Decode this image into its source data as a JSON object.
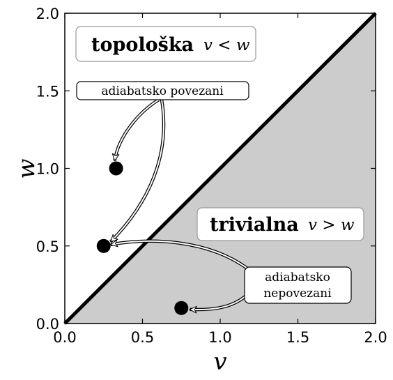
{
  "chart_data": {
    "type": "scatter",
    "xlabel": "v",
    "ylabel": "w",
    "xlim": [
      0,
      2
    ],
    "ylim": [
      0,
      2
    ],
    "xticks": [
      "0.0",
      "0.5",
      "1.0",
      "1.5",
      "2.0"
    ],
    "yticks": [
      "0.0",
      "0.5",
      "1.0",
      "1.5",
      "2.0"
    ],
    "diagonal": {
      "from": [
        0,
        0
      ],
      "to": [
        2,
        2
      ]
    },
    "shaded_region": "v > w",
    "colors": {
      "shade": "#cccccc",
      "points": "#000000",
      "line": "#000000"
    },
    "points": [
      {
        "x": 0.33,
        "y": 1.0
      },
      {
        "x": 0.25,
        "y": 0.5
      },
      {
        "x": 0.75,
        "y": 0.1
      }
    ],
    "regions": [
      {
        "title": "topološka",
        "condition": "v < w"
      },
      {
        "title": "trivialna",
        "condition": "v > w"
      }
    ],
    "annotations": [
      {
        "lines": [
          "adiabatsko povezani"
        ],
        "targets": [
          [
            0.33,
            1.0
          ],
          [
            0.25,
            0.5
          ]
        ]
      },
      {
        "lines": [
          "adiabatsko",
          "nepovezani"
        ],
        "targets": [
          [
            0.25,
            0.5
          ],
          [
            0.75,
            0.1
          ]
        ]
      }
    ]
  }
}
